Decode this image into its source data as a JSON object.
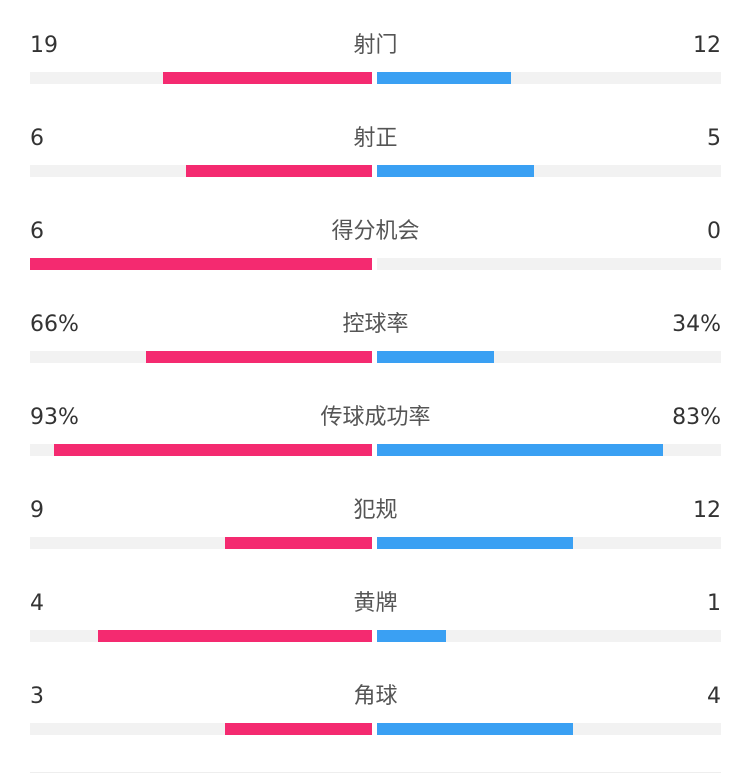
{
  "colors": {
    "home": "#f42a70",
    "away": "#3aa0f3",
    "track": "#f2f2f2"
  },
  "stats": [
    {
      "label": "射门",
      "left": "19",
      "right": "12",
      "left_ratio": 0.61,
      "right_ratio": 0.39
    },
    {
      "label": "射正",
      "left": "6",
      "right": "5",
      "left_ratio": 0.545,
      "right_ratio": 0.455
    },
    {
      "label": "得分机会",
      "left": "6",
      "right": "0",
      "left_ratio": 1.0,
      "right_ratio": 0.0
    },
    {
      "label": "控球率",
      "left": "66%",
      "right": "34%",
      "left_ratio": 0.66,
      "right_ratio": 0.34
    },
    {
      "label": "传球成功率",
      "left": "93%",
      "right": "83%",
      "left_ratio": 0.93,
      "right_ratio": 0.83
    },
    {
      "label": "犯规",
      "left": "9",
      "right": "12",
      "left_ratio": 0.43,
      "right_ratio": 0.57
    },
    {
      "label": "黄牌",
      "left": "4",
      "right": "1",
      "left_ratio": 0.8,
      "right_ratio": 0.2
    },
    {
      "label": "角球",
      "left": "3",
      "right": "4",
      "left_ratio": 0.43,
      "right_ratio": 0.57
    }
  ]
}
